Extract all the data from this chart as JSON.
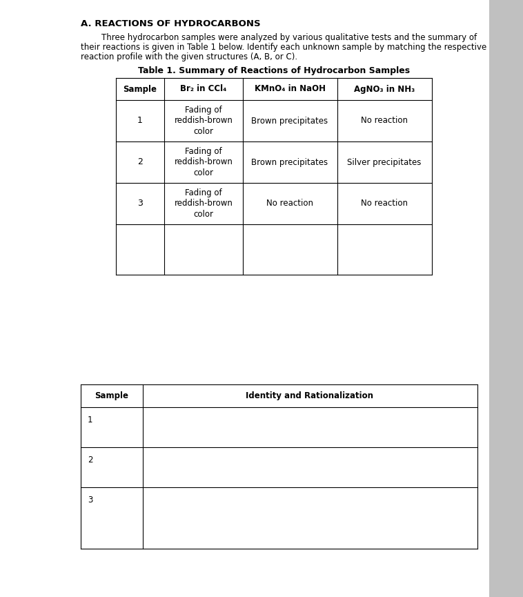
{
  "title": "A. REACTIONS OF HYDROCARBONS",
  "line1": "        Three hydrocarbon samples were analyzed by various qualitative tests and the summary of",
  "line2": "their reactions is given in Table 1 below. Identify each unknown sample by matching the respective",
  "line3": "reaction profile with the given structures (A, B, or C).",
  "table1_title": "Table 1. Summary of Reactions of Hydrocarbon Samples",
  "col_headers": [
    "Sample",
    "Br₂ in CCl₄",
    "KMnO₄ in NaOH",
    "AgNO₃ in NH₃"
  ],
  "rows": [
    [
      "1",
      "Fading of\nreddish-brown\ncolor",
      "Brown precipitates",
      "No reaction"
    ],
    [
      "2",
      "Fading of\nreddish-brown\ncolor",
      "Brown precipitates",
      "Silver precipitates"
    ],
    [
      "3",
      "Fading of\nreddish-brown\ncolor",
      "No reaction",
      "No reaction"
    ]
  ],
  "t2_header": [
    "Sample",
    "Identity and Rationalization"
  ],
  "t2_rows": [
    "1",
    "2",
    "3"
  ],
  "page_bg": "#d8d8d8",
  "white": "#ffffff",
  "sidebar_color": "#c0c0c0"
}
